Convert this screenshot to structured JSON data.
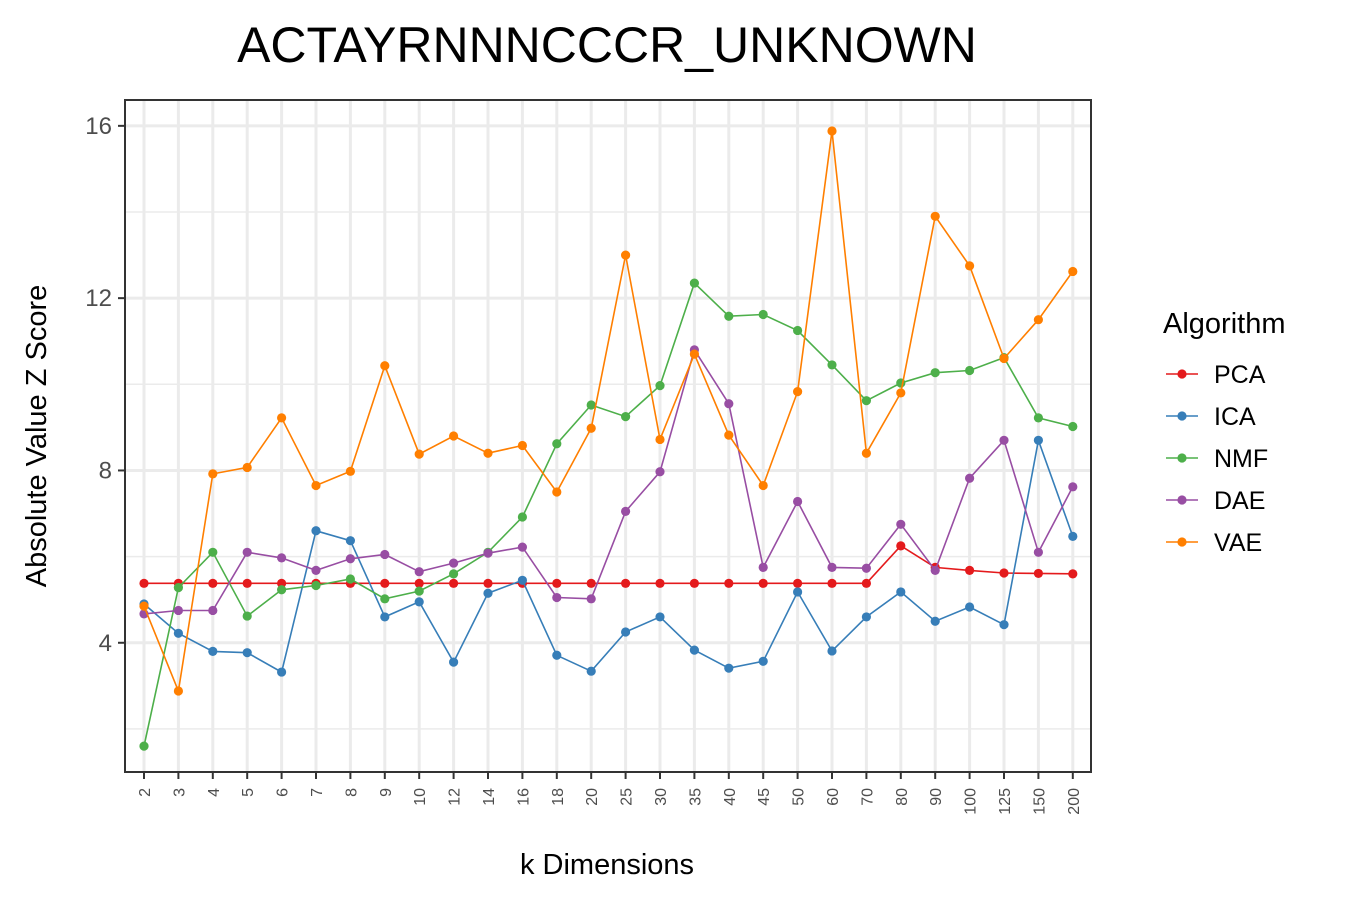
{
  "chart_data": {
    "type": "line",
    "title": "ACTAYRNNNCCCR_UNKNOWN",
    "xlabel": "k Dimensions",
    "ylabel": "Absolute Value Z Score",
    "x_scale": "categorical",
    "categories": [
      "2",
      "3",
      "4",
      "5",
      "6",
      "7",
      "8",
      "9",
      "10",
      "12",
      "14",
      "16",
      "18",
      "20",
      "25",
      "30",
      "35",
      "40",
      "45",
      "50",
      "60",
      "70",
      "80",
      "90",
      "100",
      "125",
      "150",
      "200"
    ],
    "ylim": [
      1.0,
      16.6
    ],
    "yticks": [
      4,
      8,
      12,
      16
    ],
    "grid": true,
    "legend": {
      "title": "Algorithm",
      "position": "right"
    },
    "series": [
      {
        "name": "PCA",
        "color": "#e41a1c",
        "values": [
          5.38,
          5.38,
          5.38,
          5.38,
          5.38,
          5.38,
          5.38,
          5.38,
          5.38,
          5.38,
          5.38,
          5.38,
          5.38,
          5.38,
          5.38,
          5.38,
          5.38,
          5.38,
          5.38,
          5.38,
          5.38,
          5.38,
          6.25,
          5.75,
          5.68,
          5.62,
          5.61,
          5.6
        ]
      },
      {
        "name": "ICA",
        "color": "#377eb8",
        "values": [
          4.9,
          4.22,
          3.8,
          3.77,
          3.32,
          6.6,
          6.37,
          4.6,
          4.95,
          3.55,
          5.15,
          5.45,
          3.71,
          3.34,
          4.25,
          4.6,
          3.83,
          3.41,
          3.57,
          5.18,
          3.81,
          4.6,
          5.18,
          4.5,
          4.83,
          4.42,
          8.7,
          6.47
        ]
      },
      {
        "name": "NMF",
        "color": "#4daf4a",
        "values": [
          1.6,
          5.28,
          6.1,
          4.62,
          5.23,
          5.33,
          5.48,
          5.02,
          5.2,
          5.6,
          6.1,
          6.92,
          8.62,
          9.52,
          9.25,
          9.97,
          12.35,
          11.58,
          11.62,
          11.25,
          10.45,
          9.62,
          10.03,
          10.27,
          10.32,
          10.62,
          9.22,
          9.02
        ]
      },
      {
        "name": "DAE",
        "color": "#984ea3",
        "values": [
          4.67,
          4.75,
          4.75,
          6.1,
          5.97,
          5.68,
          5.95,
          6.05,
          5.65,
          5.85,
          6.08,
          6.22,
          5.05,
          5.02,
          7.05,
          7.97,
          10.8,
          9.55,
          5.75,
          7.28,
          5.75,
          5.73,
          6.75,
          5.68,
          7.82,
          8.7,
          6.1,
          7.62
        ]
      },
      {
        "name": "VAE",
        "color": "#ff7f00",
        "values": [
          4.85,
          2.88,
          7.92,
          8.07,
          9.22,
          7.65,
          7.98,
          10.43,
          8.38,
          8.8,
          8.4,
          8.58,
          7.5,
          8.98,
          13.0,
          8.72,
          10.7,
          8.82,
          7.65,
          9.83,
          15.88,
          8.4,
          9.8,
          13.9,
          12.75,
          10.6,
          11.5,
          12.62
        ]
      }
    ]
  }
}
